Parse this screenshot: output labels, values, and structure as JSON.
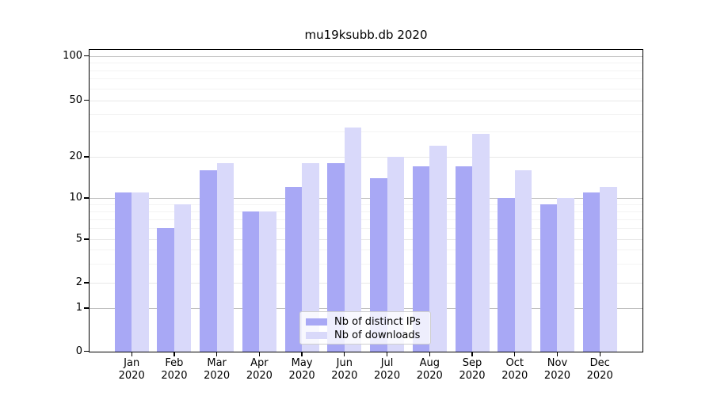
{
  "title": "mu19ksubb.db 2020",
  "chart_data": {
    "type": "bar",
    "title": "mu19ksubb.db 2020",
    "categories": [
      "Jan",
      "Feb",
      "Mar",
      "Apr",
      "May",
      "Jun",
      "Jul",
      "Aug",
      "Sep",
      "Oct",
      "Nov",
      "Dec"
    ],
    "category_year": "2020",
    "series": [
      {
        "name": "Nb of distinct IPs",
        "color": "#a8a8f5",
        "values": [
          11,
          6,
          16,
          8,
          12,
          18,
          14,
          17,
          17,
          10,
          9,
          11
        ]
      },
      {
        "name": "Nb of downloads",
        "color": "#d9d9fa",
        "values": [
          11,
          9,
          18,
          8,
          18,
          32,
          20,
          24,
          29,
          16,
          10,
          12
        ]
      }
    ],
    "yscale": "symlog",
    "ylim": [
      0,
      113
    ],
    "y_ticks": [
      0,
      1,
      2,
      5,
      10,
      20,
      50,
      100
    ],
    "y_minor_gridlines": [
      3,
      4,
      6,
      7,
      8,
      9,
      30,
      40,
      60,
      70,
      80,
      90
    ],
    "grid": true,
    "legend_position": "lower center"
  }
}
